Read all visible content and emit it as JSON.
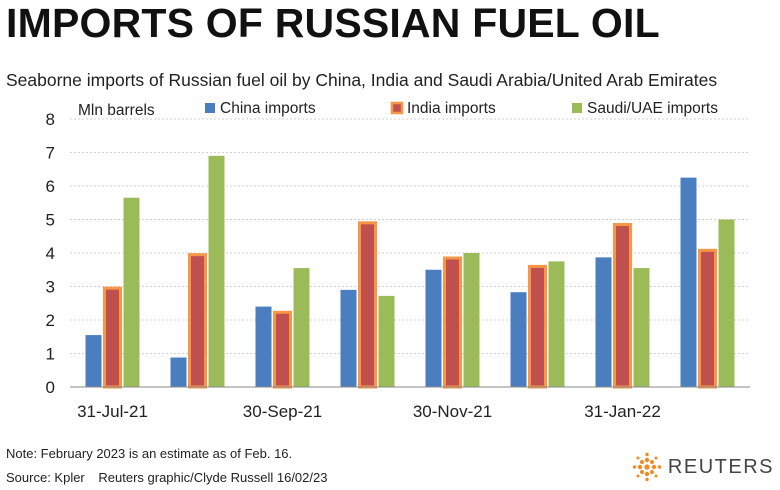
{
  "header": {
    "title": "IMPORTS OF RUSSIAN FUEL OIL",
    "subtitle": "Seaborne imports of Russian fuel oil by China, India and Saudi Arabia/United Arab Emirates"
  },
  "chart_data": {
    "type": "bar",
    "ylabel": "Mln barrels",
    "ylim": [
      0,
      8
    ],
    "yticks": [
      0,
      1,
      2,
      3,
      4,
      5,
      6,
      7,
      8
    ],
    "grid": true,
    "legend_position": "top",
    "x_tick_labels": [
      {
        "label": "31-Jul-21",
        "index": 0
      },
      {
        "label": "30-Sep-21",
        "index": 2
      },
      {
        "label": "30-Nov-21",
        "index": 4
      },
      {
        "label": "31-Jan-22",
        "index": 6
      }
    ],
    "series": [
      {
        "name": "China imports",
        "color": "#4a7ebf",
        "values": [
          1.55,
          0.88,
          2.4,
          2.9,
          3.5,
          2.83,
          3.87,
          6.25
        ]
      },
      {
        "name": "India imports",
        "color": "#c0504d",
        "outline": "#f79646",
        "values": [
          2.95,
          3.95,
          2.23,
          4.9,
          3.85,
          3.6,
          4.85,
          4.08
        ]
      },
      {
        "name": "Saudi/UAE imports",
        "color": "#9bbb59",
        "values": [
          5.65,
          6.9,
          3.55,
          2.72,
          4.0,
          3.75,
          3.55,
          5.0
        ]
      }
    ]
  },
  "footer": {
    "note": "Note: February 2023 is an estimate as of Feb. 16.",
    "source": "Source: Kpler",
    "credit": "Reuters graphic/Clyde Russell 16/02/23",
    "brand": "REUTERS"
  }
}
